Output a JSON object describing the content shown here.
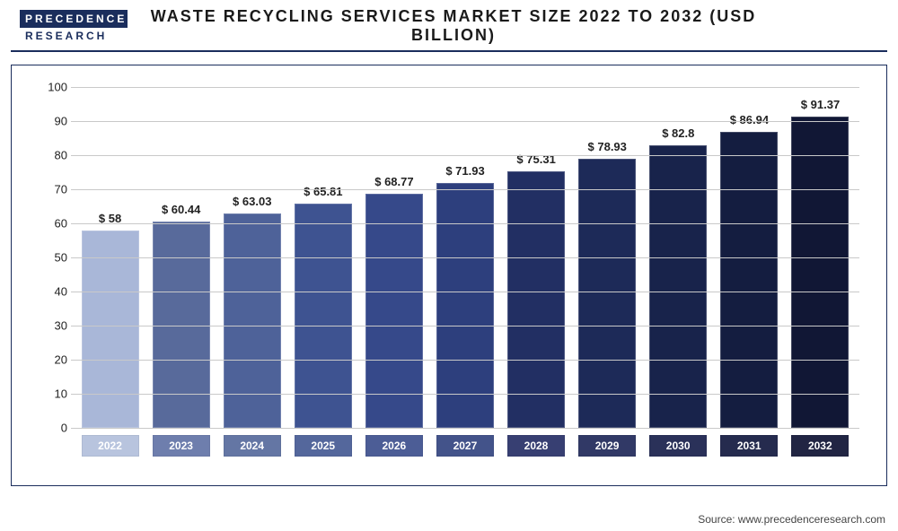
{
  "logo": {
    "top": "PRECEDENCE",
    "bottom": "RESEARCH"
  },
  "title": "WASTE RECYCLING SERVICES MARKET SIZE 2022 TO 2032 (USD BILLION)",
  "chart": {
    "type": "bar",
    "ylim": [
      0,
      100
    ],
    "ytick_step": 10,
    "grid_color": "#c9c9c9",
    "background_color": "#ffffff",
    "label_fontsize": 13,
    "value_prefix": "$ ",
    "categories": [
      "2022",
      "2023",
      "2024",
      "2025",
      "2026",
      "2027",
      "2028",
      "2029",
      "2030",
      "2031",
      "2032"
    ],
    "values": [
      58,
      60.44,
      63.03,
      65.81,
      68.77,
      71.93,
      75.31,
      78.93,
      82.8,
      86.94,
      91.37
    ],
    "value_labels": [
      "$ 58",
      "$ 60.44",
      "$ 63.03",
      "$ 65.81",
      "$ 68.77",
      "$ 71.93",
      "$ 75.31",
      "$ 78.93",
      "$ 82.8",
      "$ 86.94",
      "$ 91.37"
    ],
    "bar_colors": [
      "#a9b7d8",
      "#586a9b",
      "#4e6299",
      "#3e5391",
      "#36498a",
      "#2d3f7d",
      "#222f63",
      "#1d2a58",
      "#18234b",
      "#141d40",
      "#111735"
    ],
    "xaxis_box_colors": [
      "#b8c4de",
      "#6e7ead",
      "#6476a4",
      "#54679c",
      "#4c5d96",
      "#43538a",
      "#373f72",
      "#313966",
      "#2a3159",
      "#252b4e",
      "#212543"
    ]
  },
  "source": "Source: www.precedenceresearch.com"
}
